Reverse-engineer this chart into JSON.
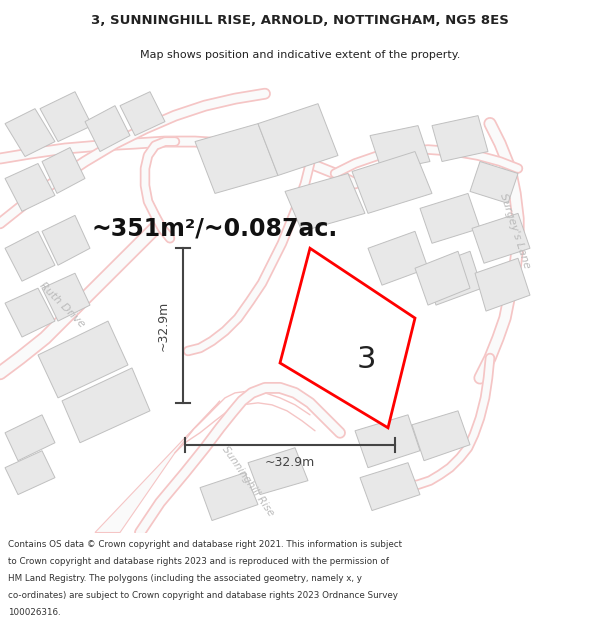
{
  "title_line1": "3, SUNNINGHILL RISE, ARNOLD, NOTTINGHAM, NG5 8ES",
  "title_line2": "Map shows position and indicative extent of the property.",
  "area_text": "~351m²/~0.087ac.",
  "plot_label": "3",
  "dim_width": "~32.9m",
  "dim_height": "~32.9m",
  "street_surgeys": "Surgey's Lane",
  "street_ruth": "Ruth Drive",
  "street_sunninghill": "Sunninghill Rise",
  "copyright_text": "Contains OS data © Crown copyright and database right 2021. This information is subject to Crown copyright and database rights 2023 and is reproduced with the permission of HM Land Registry. The polygons (including the associated geometry, namely x, y co-ordinates) are subject to Crown copyright and database rights 2023 Ordnance Survey 100026316.",
  "bg_color": "#ffffff",
  "map_bg": "#ffffff",
  "road_line_color": "#f5c5c5",
  "building_fill": "#e8e8e8",
  "building_edge": "#c0c0c0",
  "plot_edge": "#ff0000",
  "plot_fill": "#ffffff",
  "dim_line_color": "#444444",
  "street_label_color": "#aaaaaa",
  "title_color": "#222222",
  "area_text_color": "#111111"
}
